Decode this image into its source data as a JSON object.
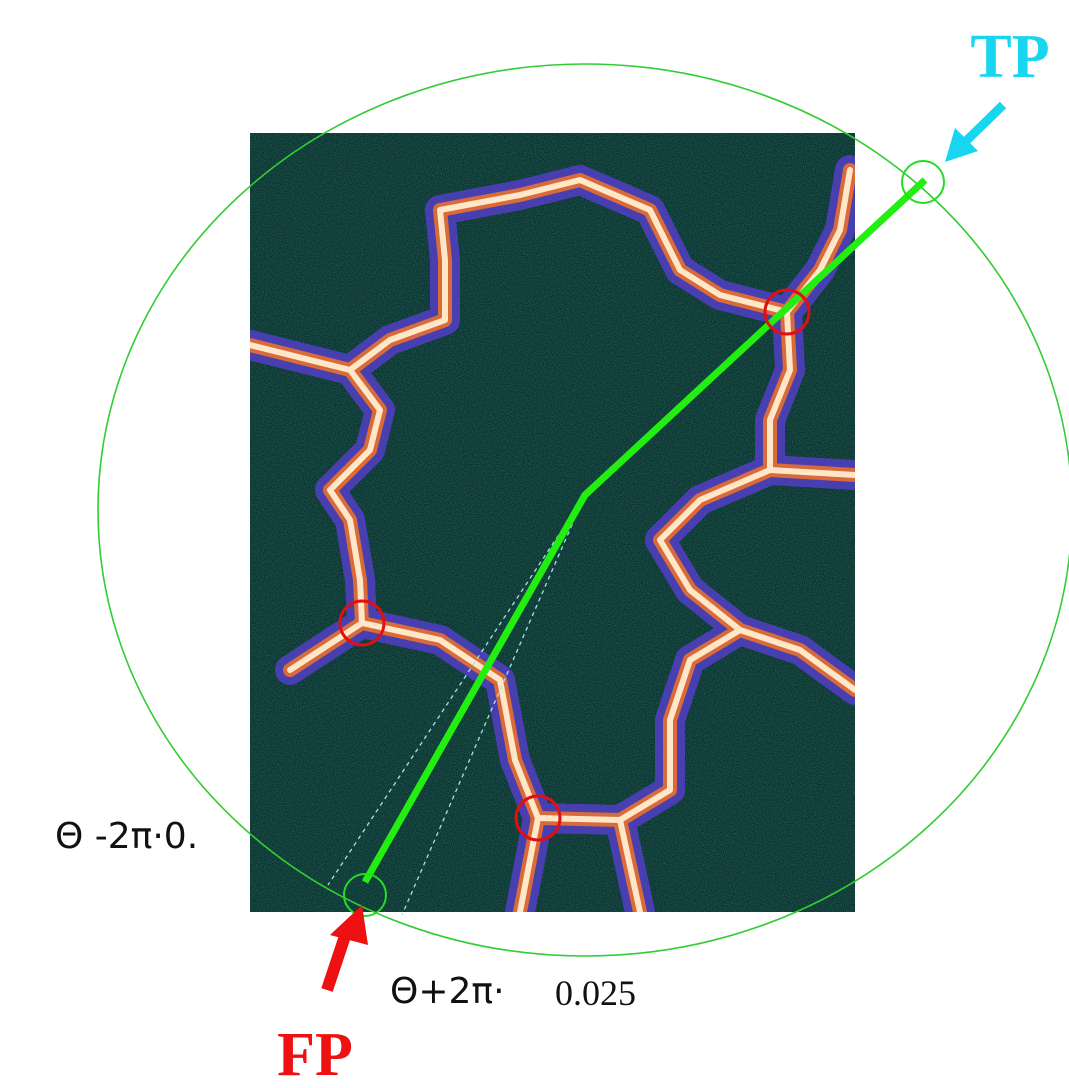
{
  "labels": {
    "tp": "TP",
    "fp": "FP",
    "theta_minus": "Θ -2π·0.",
    "theta_plus": "Θ+2π·",
    "theta_plus_value": "0.025"
  }
}
